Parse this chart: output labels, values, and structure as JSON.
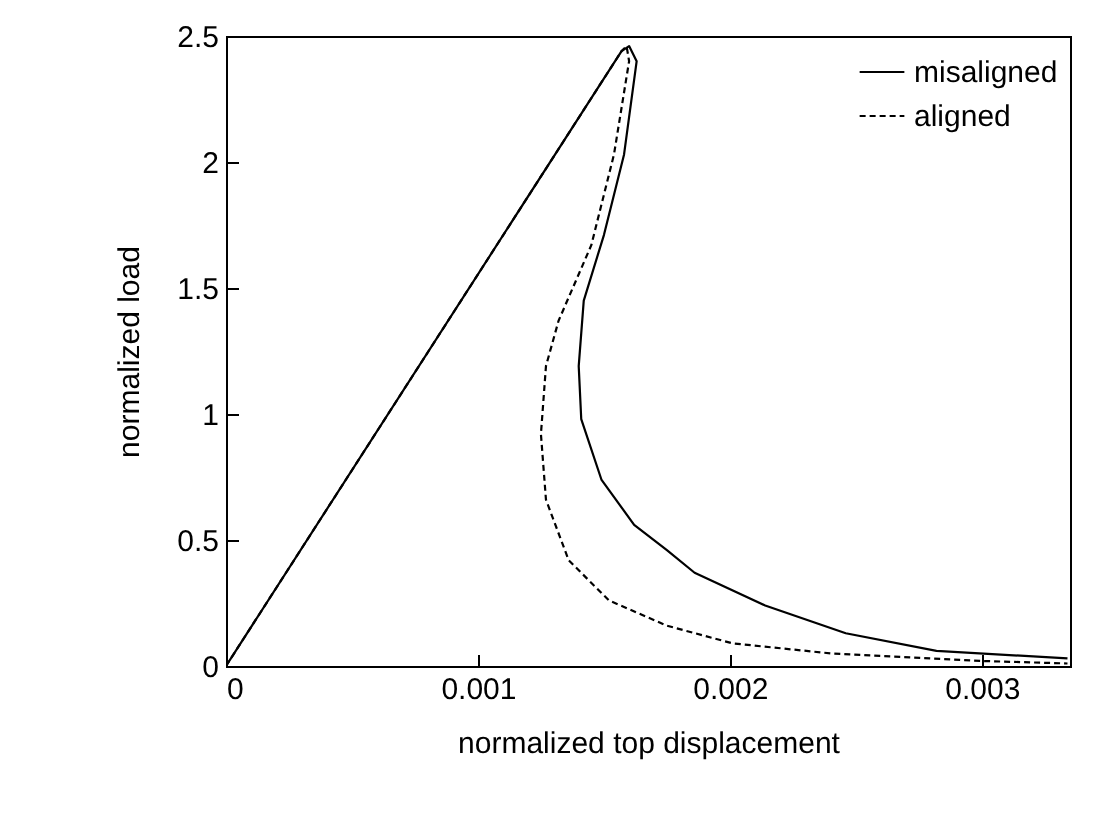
{
  "chart_data": {
    "type": "line",
    "xlabel": "normalized top displacement",
    "ylabel": "normalized load",
    "xlim": [
      0,
      0.00335
    ],
    "ylim": [
      0,
      2.5
    ],
    "xticks": [
      0,
      0.001,
      0.002,
      0.003
    ],
    "yticks": [
      0,
      0.5,
      1,
      1.5,
      2,
      2.5
    ],
    "grid": false,
    "legend": "top right",
    "marker": "none",
    "series": [
      {
        "name": "misaligned",
        "color": "#000000",
        "line_style": "solid",
        "x": [
          0,
          0.00157,
          0.0016,
          0.00163,
          0.00158,
          0.0015,
          0.00142,
          0.0014,
          0.00141,
          0.00149,
          0.00162,
          0.00175,
          0.00186,
          0.00214,
          0.00246,
          0.00282,
          0.00334
        ],
        "values": [
          0,
          2.44,
          2.46,
          2.4,
          2.03,
          1.71,
          1.45,
          1.19,
          0.98,
          0.74,
          0.56,
          0.46,
          0.37,
          0.24,
          0.13,
          0.06,
          0.03
        ]
      },
      {
        "name": "aligned",
        "color": "#000000",
        "line_style": "dashed",
        "x": [
          0,
          0.00157,
          0.00159,
          0.0016,
          0.00154,
          0.00145,
          0.00132,
          0.00127,
          0.00125,
          0.00127,
          0.00136,
          0.00152,
          0.00175,
          0.00201,
          0.0024,
          0.003,
          0.00334
        ],
        "values": [
          0,
          2.44,
          2.46,
          2.4,
          2.03,
          1.67,
          1.37,
          1.19,
          0.92,
          0.66,
          0.42,
          0.26,
          0.16,
          0.09,
          0.05,
          0.02,
          0.01
        ]
      }
    ]
  }
}
